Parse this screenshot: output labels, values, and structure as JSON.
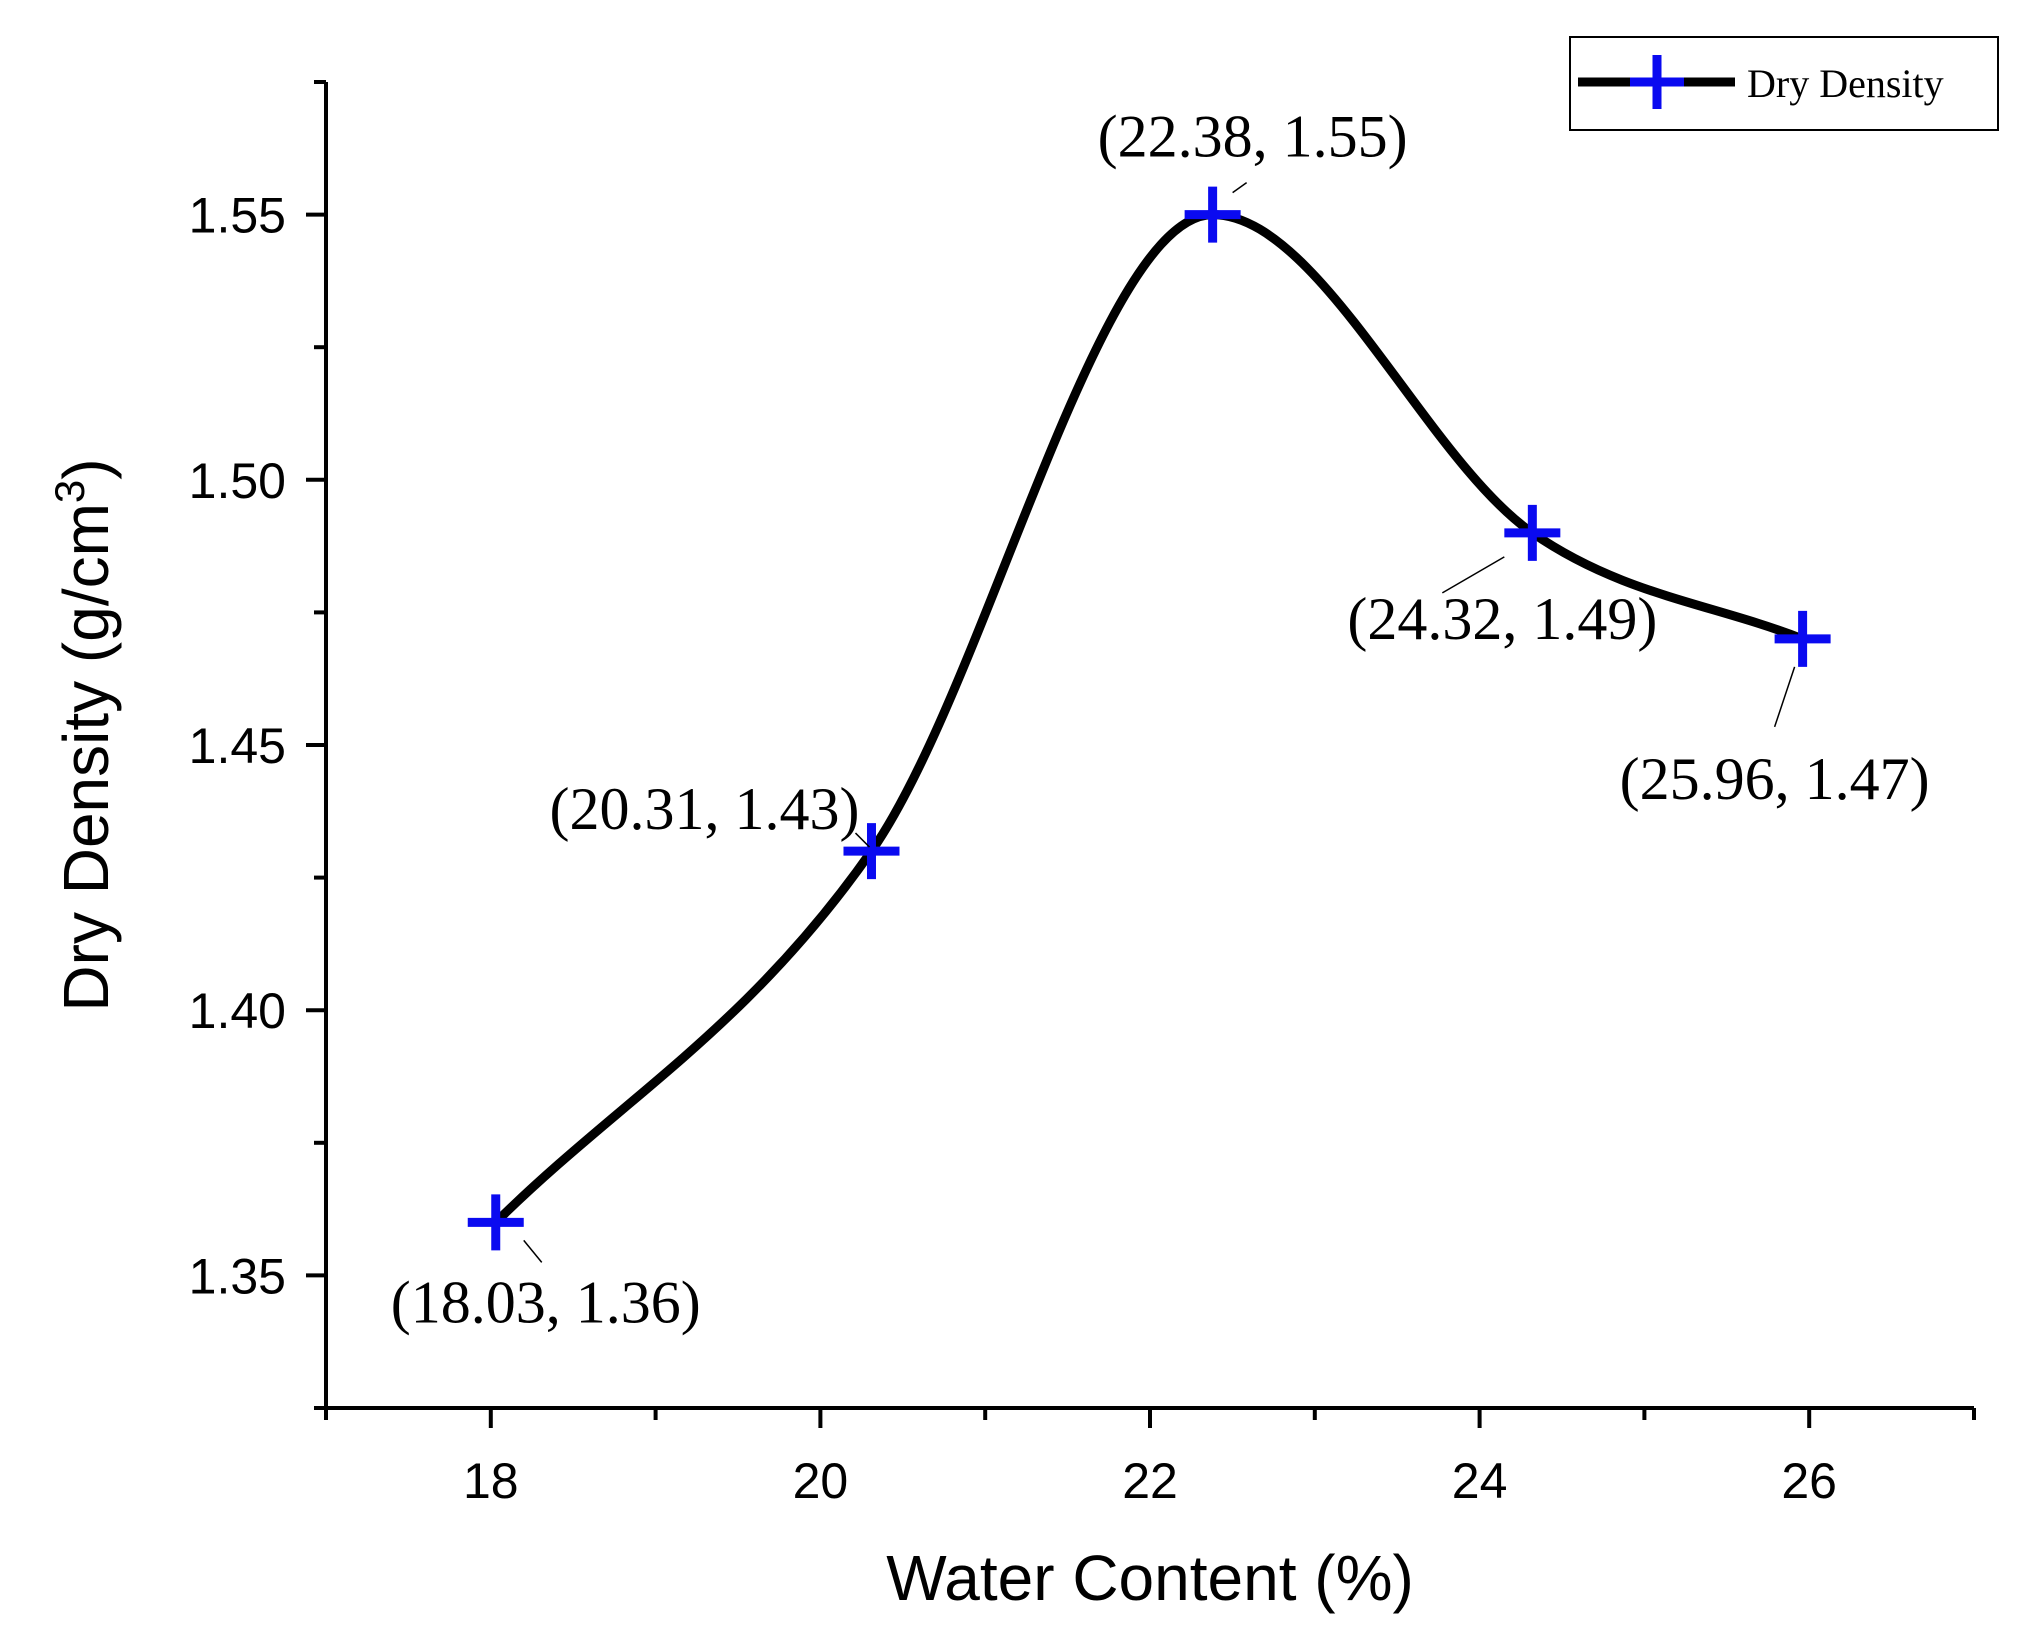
{
  "chart_data": {
    "type": "line",
    "title": "",
    "xlabel": "Water Content (%)",
    "ylabel_main": "Dry Density (g/cm",
    "ylabel_sup": "3",
    "ylabel_close": ")",
    "xlim": [
      17.0,
      27.0
    ],
    "ylim": [
      1.325,
      1.575
    ],
    "x_major_ticks": [
      18,
      20,
      22,
      24,
      26
    ],
    "x_tick_labels": [
      "18",
      "20",
      "22",
      "24",
      "26"
    ],
    "x_minor_ticks": [
      17,
      19,
      21,
      23,
      25,
      27
    ],
    "y_major_ticks": [
      1.35,
      1.4,
      1.45,
      1.5,
      1.55
    ],
    "y_tick_labels": [
      "1.35",
      "1.40",
      "1.45",
      "1.50",
      "1.55"
    ],
    "y_minor_ticks": [
      1.325,
      1.375,
      1.425,
      1.475,
      1.525,
      1.575
    ],
    "legend_position": "top-right",
    "series": [
      {
        "name": "Dry Density",
        "line_color": "#000000",
        "marker_color": "#0a0af0",
        "x": [
          18.03,
          20.31,
          22.38,
          24.32,
          25.96
        ],
        "y": [
          1.36,
          1.43,
          1.55,
          1.49,
          1.47
        ]
      }
    ],
    "annotations": [
      {
        "text": "(18.03, 1.36)",
        "x": 18.03,
        "y": 1.36,
        "placement": "below"
      },
      {
        "text": "(20.31, 1.43)",
        "x": 20.31,
        "y": 1.43,
        "placement": "upper-left"
      },
      {
        "text": "(22.38, 1.55)",
        "x": 22.38,
        "y": 1.55,
        "placement": "above"
      },
      {
        "text": "(24.32, 1.49)",
        "x": 24.32,
        "y": 1.49,
        "placement": "below"
      },
      {
        "text": "(25.96, 1.47)",
        "x": 25.96,
        "y": 1.47,
        "placement": "below"
      }
    ]
  }
}
